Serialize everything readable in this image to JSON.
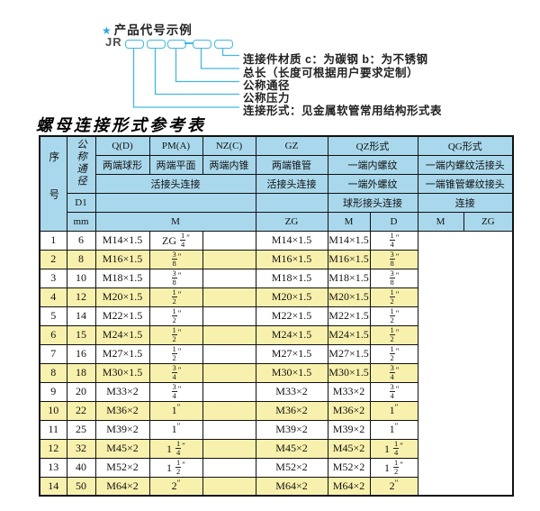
{
  "diagram": {
    "star_icon": "★",
    "heading": "产品代号示例",
    "prefix": "JR",
    "labels": [
      "连接件材质 c：为碳钢 b：为不锈钢",
      "总长（长度可根据用户要求定制）",
      "公称通径",
      "公称压力",
      "连接形式：见金属软管常用结构形式表"
    ]
  },
  "table": {
    "title": "螺母连接形式参考表",
    "header": {
      "xuhao": "序号",
      "tongjing": "公称通径",
      "d1": "D1",
      "mm": "mm",
      "qd": "Q(D)",
      "pma": "PM(A)",
      "nzc": "NZ(C)",
      "gz": "GZ",
      "qz": "QZ形式",
      "qg": "QG形式",
      "qd_sub": "两端球形",
      "pma_sub": "两端平面",
      "nzc_sub": "两端内锥",
      "gz_sub": "两端锥管",
      "qz_sub1": "一端内螺纹",
      "qg_sub1": "一端内螺纹活接头",
      "union_conn": "活接头连接",
      "gz_conn": "活接头连接",
      "qz_sub2": "一端外螺纹",
      "qg_sub2": "一端锥管螺纹接头",
      "qz_conn": "球形接头连接",
      "qg_conn": "连接",
      "m1": "M",
      "zg1": "ZG",
      "m2": "M",
      "d": "D",
      "m3": "M",
      "zg2": "ZG"
    },
    "rows": [
      [
        "1",
        "6",
        "M14×1.5",
        "ZG 1/4″",
        "",
        "M14×1.5",
        "M14×1.5",
        "1/4″"
      ],
      [
        "2",
        "8",
        "M16×1.5",
        "3/8″",
        "",
        "M16×1.5",
        "M16×1.5",
        "3/8″"
      ],
      [
        "3",
        "10",
        "M18×1.5",
        "3/8″",
        "",
        "M18×1.5",
        "M18×1.5",
        "3/8″"
      ],
      [
        "4",
        "12",
        "M20×1.5",
        "1/2″",
        "",
        "M20×1.5",
        "M20×1.5",
        "1/2″"
      ],
      [
        "5",
        "14",
        "M22×1.5",
        "1/2″",
        "",
        "M22×1.5",
        "M22×1.5",
        "1/2″"
      ],
      [
        "6",
        "15",
        "M24×1.5",
        "1/2″",
        "",
        "M24×1.5",
        "M24×1.5",
        "1/2″"
      ],
      [
        "7",
        "16",
        "M27×1.5",
        "1/2″",
        "",
        "M27×1.5",
        "M27×1.5",
        "1/2″"
      ],
      [
        "8",
        "18",
        "M30×1.5",
        "3/4″",
        "",
        "M30×1.5",
        "M30×1.5",
        "3/4″"
      ],
      [
        "9",
        "20",
        "M33×2",
        "3/4″",
        "",
        "M33×2",
        "M33×2",
        "3/4″"
      ],
      [
        "10",
        "22",
        "M36×2",
        "1″",
        "",
        "M36×2",
        "M36×2",
        "1″"
      ],
      [
        "11",
        "25",
        "M39×2",
        "1″",
        "",
        "M39×2",
        "M39×2",
        "1″"
      ],
      [
        "12",
        "32",
        "M45×2",
        "1 1/4″",
        "",
        "M45×2",
        "M45×2",
        "1 1/4″"
      ],
      [
        "13",
        "40",
        "M52×2",
        "1 1/2″",
        "",
        "M52×2",
        "M52×2",
        "1 1/2″"
      ],
      [
        "14",
        "50",
        "M64×2",
        "2″",
        "",
        "M64×2",
        "M64×2",
        "2″"
      ]
    ],
    "colors": {
      "header_bg": "#a9d8ec",
      "alt_row_bg": "#f8f1ad",
      "diagram_accent": "#41b9e3",
      "border": "#111111"
    }
  }
}
